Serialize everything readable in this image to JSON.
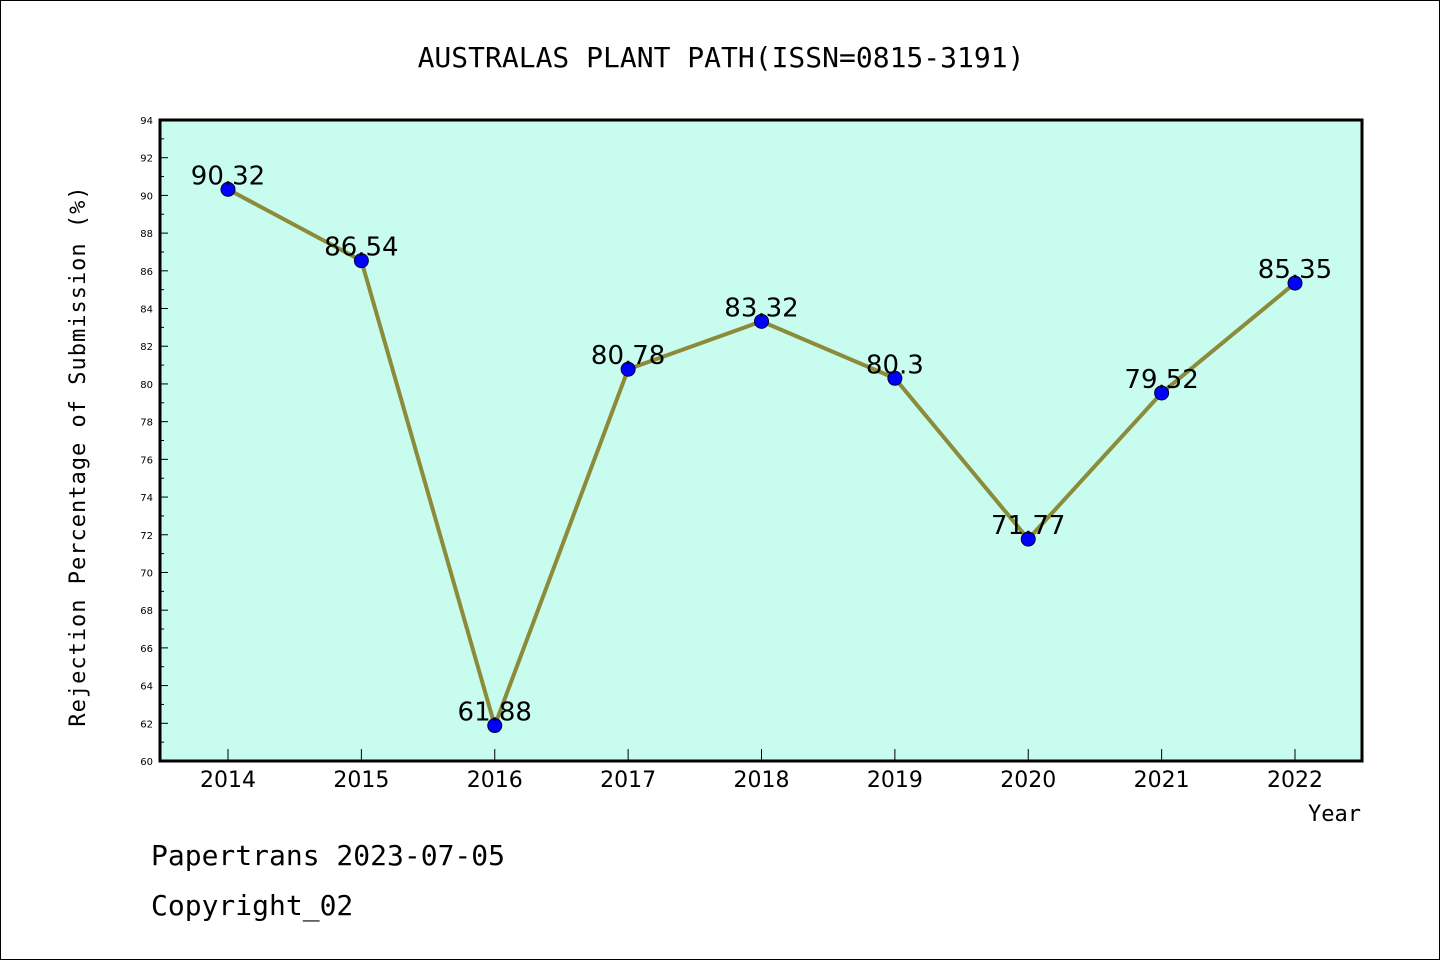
{
  "chart_data": {
    "type": "line",
    "title": "AUSTRALAS PLANT PATH(ISSN=0815-3191)",
    "xlabel": "Year",
    "ylabel": "Rejection Percentage of Submission (%)",
    "categories": [
      "2014",
      "2015",
      "2016",
      "2017",
      "2018",
      "2019",
      "2020",
      "2021",
      "2022"
    ],
    "values": [
      90.32,
      86.54,
      61.88,
      80.78,
      83.32,
      80.3,
      71.77,
      79.52,
      85.35
    ],
    "value_labels": [
      "90.32",
      "86.54",
      "61.88",
      "80.78",
      "83.32",
      "80.3",
      "71.77",
      "79.52",
      "85.35"
    ],
    "ylim": [
      60,
      94
    ],
    "yticks": [
      60,
      62,
      64,
      66,
      68,
      70,
      72,
      74,
      76,
      78,
      80,
      82,
      84,
      86,
      88,
      90,
      92,
      94
    ],
    "grid": false,
    "colors": {
      "plot_background": "#c8fcee",
      "line": "#8b8b3a",
      "marker": "#0000ff"
    }
  },
  "footer": {
    "line1": "Papertrans 2023-07-05",
    "line2": "Copyright_02"
  }
}
